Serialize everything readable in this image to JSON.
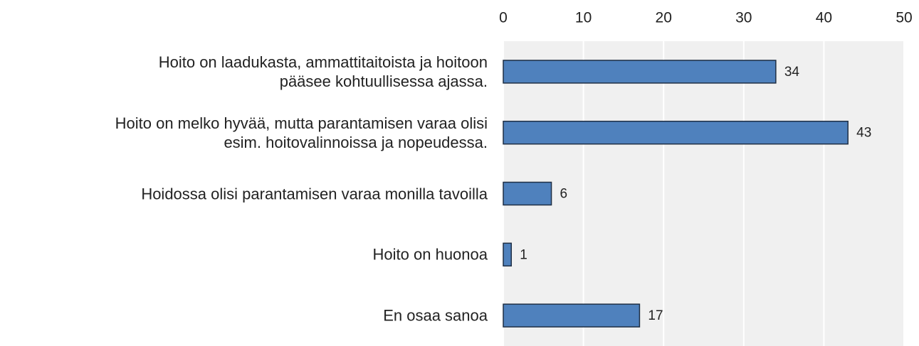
{
  "chart_data": {
    "type": "bar",
    "orientation": "horizontal",
    "categories": [
      "Hoito on laadukasta, ammattitaitoista ja hoitoon\npääsee kohtuullisessa ajassa.",
      "Hoito on melko hyvää, mutta parantamisen varaa olisi\nesim. hoitovalinnoissa ja nopeudessa.",
      "Hoidossa olisi parantamisen varaa monilla tavoilla",
      "Hoito on huonoa",
      "En osaa sanoa"
    ],
    "values": [
      34,
      43,
      6,
      1,
      17
    ],
    "color": "#4f81bd",
    "xlim": [
      0,
      50
    ],
    "xticks": [
      0,
      10,
      20,
      30,
      40,
      50
    ],
    "grid": true
  }
}
